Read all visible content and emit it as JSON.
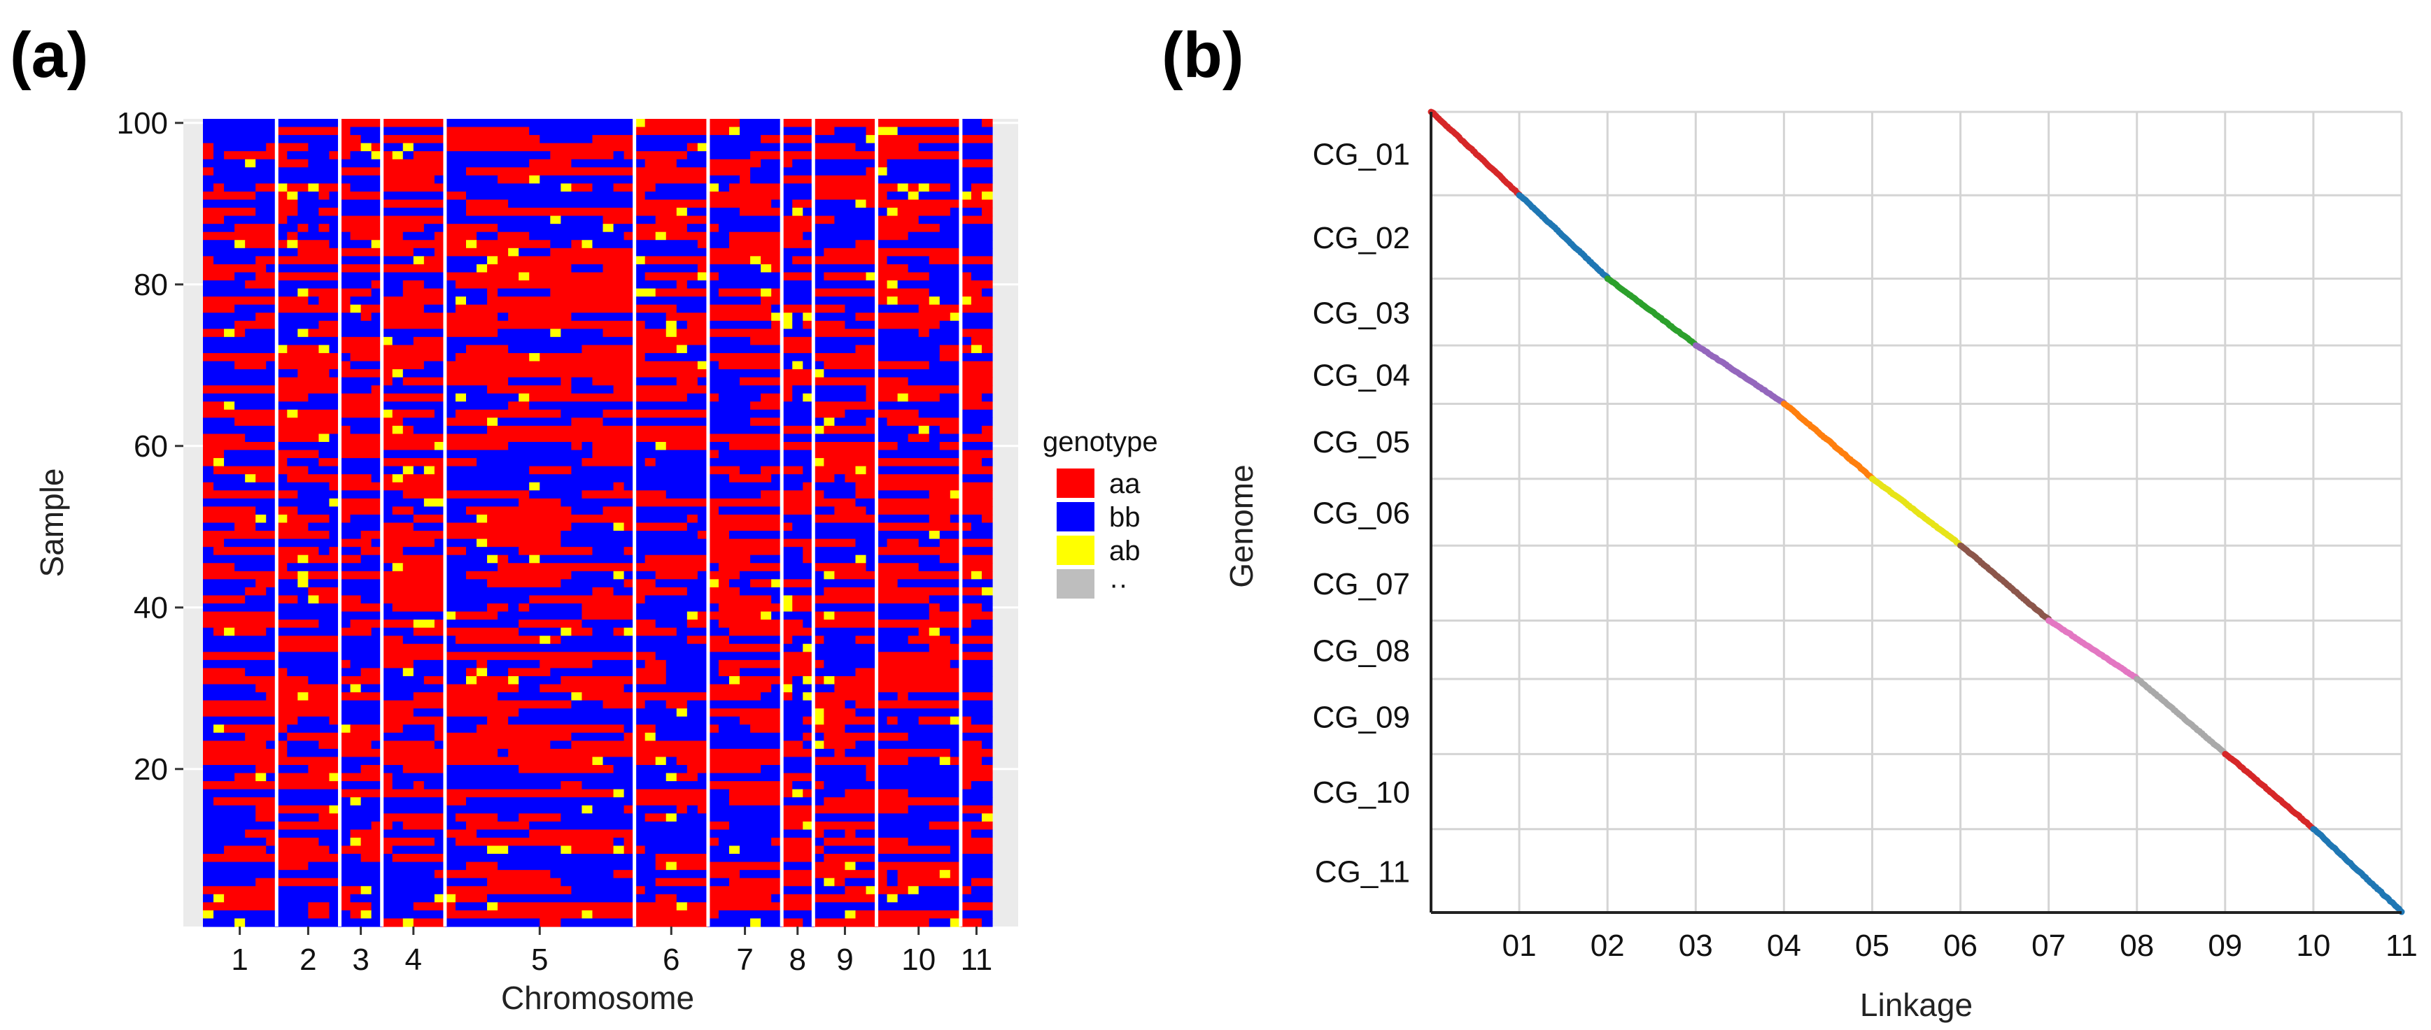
{
  "panel_a_label": "(a)",
  "panel_b_label": "(b)",
  "colors": {
    "aa": "#ff0000",
    "bb": "#0000ff",
    "ab": "#ffff00",
    "na": "#bebebe",
    "panel_bg": "#ebebeb"
  },
  "chart_data": [
    {
      "type": "heatmap",
      "xlabel": "Chromosome",
      "ylabel": "Sample",
      "y_ticks": [
        "20",
        "40",
        "60",
        "80",
        "100"
      ],
      "x_ticks": [
        "1",
        "2",
        "3",
        "4",
        "5",
        "6",
        "7",
        "8",
        "9",
        "10",
        "11"
      ],
      "ylim": [
        1,
        100
      ],
      "chromosome_marker_counts": [
        7,
        6,
        4,
        6,
        18,
        7,
        7,
        3,
        6,
        8,
        3
      ],
      "legend": {
        "title": "genotype",
        "entries": [
          {
            "key": "aa",
            "label": "aa"
          },
          {
            "key": "bb",
            "label": "bb"
          },
          {
            "key": "ab",
            "label": "ab"
          },
          {
            "key": "na",
            "label": "··"
          }
        ]
      }
    },
    {
      "type": "scatter",
      "xlabel": "Linkage",
      "ylabel": "Genome",
      "x_ticks": [
        "01",
        "02",
        "03",
        "04",
        "05",
        "06",
        "07",
        "08",
        "09",
        "10",
        "11"
      ],
      "x_tick_positions": [
        1.0,
        2.0,
        3.0,
        4.0,
        5.0,
        6.0,
        7.0,
        8.0,
        9.0,
        10.0,
        11.0
      ],
      "x_boundaries": [
        0,
        1.0,
        2.0,
        3.0,
        4.0,
        5.0,
        6.0,
        7.0,
        8.0,
        9.0,
        10.0,
        11.0
      ],
      "x_gridlines": [
        1.0,
        2.0,
        3.0,
        4.0,
        5.0,
        6.0,
        7.0,
        8.0,
        9.0,
        10.0
      ],
      "y_labels": [
        "CG_01",
        "CG_02",
        "CG_03",
        "CG_04",
        "CG_05",
        "CG_06",
        "CG_07",
        "CG_08",
        "CG_09",
        "CG_10",
        "CG_11"
      ],
      "y_boundaries": [
        0,
        1.0,
        2.0,
        2.8,
        3.5,
        4.4,
        5.2,
        6.1,
        6.8,
        7.7,
        8.6,
        9.6
      ],
      "xlim": [
        0,
        11
      ],
      "ylim": [
        0,
        9.6
      ],
      "series_colors": [
        "#d62728",
        "#1f77b4",
        "#2ca02c",
        "#9467bd",
        "#ff7f0e",
        "#e7e418",
        "#8c564b",
        "#e377c2",
        "#a9a9a9",
        "#d62728",
        "#1f77b4"
      ]
    }
  ]
}
